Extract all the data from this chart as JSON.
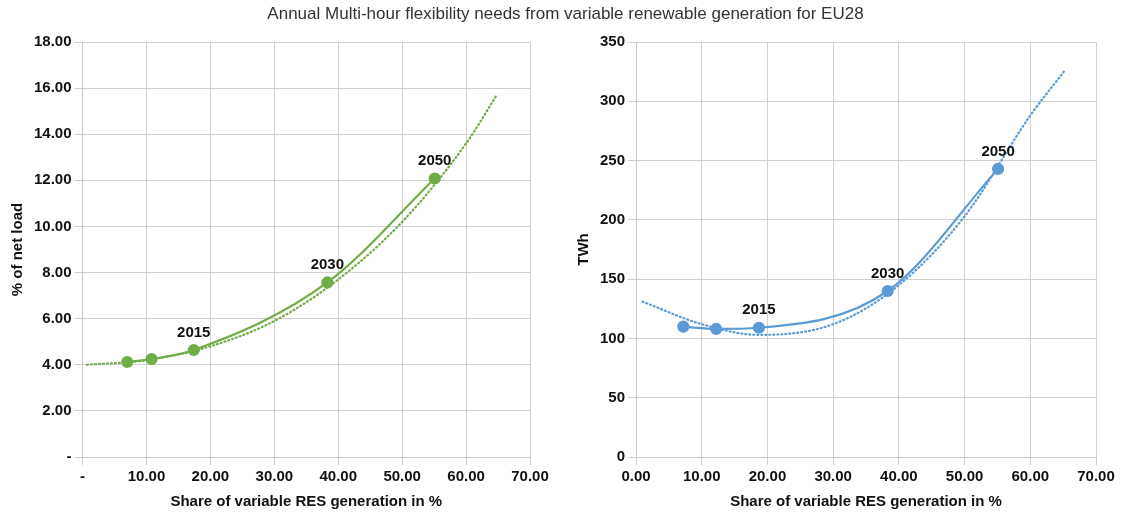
{
  "chart_data": [
    {
      "type": "line",
      "title": "Annual Multi-hour flexibility needs from variable renewable generation for EU28",
      "xlabel": "Share of variable RES generation in %",
      "ylabel": "% of net load",
      "xlim": [
        0,
        70
      ],
      "ylim": [
        0,
        18
      ],
      "xticks": [
        {
          "value": 0,
          "label": "-"
        },
        {
          "value": 10,
          "label": "10.00"
        },
        {
          "value": 20,
          "label": "20.00"
        },
        {
          "value": 30,
          "label": "30.00"
        },
        {
          "value": 40,
          "label": "40.00"
        },
        {
          "value": 50,
          "label": "50.00"
        },
        {
          "value": 60,
          "label": "60.00"
        },
        {
          "value": 70,
          "label": "70.00"
        }
      ],
      "yticks": [
        {
          "value": 0,
          "label": "-"
        },
        {
          "value": 2,
          "label": "2.00"
        },
        {
          "value": 4,
          "label": "4.00"
        },
        {
          "value": 6,
          "label": "6.00"
        },
        {
          "value": 8,
          "label": "8.00"
        },
        {
          "value": 10,
          "label": "10.00"
        },
        {
          "value": 12,
          "label": "12.00"
        },
        {
          "value": 14,
          "label": "14.00"
        },
        {
          "value": 16,
          "label": "16.00"
        },
        {
          "value": 18,
          "label": "18.00"
        }
      ],
      "grid": true,
      "legend": false,
      "series": [
        {
          "color": "#70ad47",
          "marker": "circle",
          "line_style": "solid",
          "x": [
            7.0,
            10.8,
            17.4,
            38.3,
            55.1
          ],
          "values": [
            4.12,
            4.25,
            4.64,
            7.57,
            12.08
          ]
        },
        {
          "color": "#70ad47",
          "marker": "none",
          "line_style": "dotted",
          "x": [
            0.7,
            10,
            20,
            30,
            40,
            50,
            60,
            64.8
          ],
          "values": [
            4.0,
            4.2,
            4.8,
            5.9,
            7.7,
            10.2,
            13.6,
            15.7
          ]
        }
      ],
      "annotations": [
        {
          "text": "2015",
          "x": 17.4,
          "y": 4.64
        },
        {
          "text": "2030",
          "x": 38.3,
          "y": 7.57
        },
        {
          "text": "2050",
          "x": 55.1,
          "y": 12.08
        }
      ]
    },
    {
      "type": "line",
      "xlabel": "Share of variable RES generation in %",
      "ylabel": "TWh",
      "xlim": [
        0,
        70
      ],
      "ylim": [
        0,
        350
      ],
      "xticks": [
        {
          "value": 0,
          "label": "0.00"
        },
        {
          "value": 10,
          "label": "10.00"
        },
        {
          "value": 20,
          "label": "20.00"
        },
        {
          "value": 30,
          "label": "30.00"
        },
        {
          "value": 40,
          "label": "40.00"
        },
        {
          "value": 50,
          "label": "50.00"
        },
        {
          "value": 60,
          "label": "60.00"
        },
        {
          "value": 70,
          "label": "70.00"
        }
      ],
      "yticks": [
        0,
        50,
        100,
        150,
        200,
        250,
        300,
        350
      ],
      "grid": true,
      "legend": false,
      "series": [
        {
          "color": "#5b9bd5",
          "marker": "circle",
          "line_style": "solid",
          "x": [
            7.2,
            12.2,
            18.7,
            38.3,
            55.1
          ],
          "values": [
            110,
            108,
            109,
            140,
            243
          ]
        },
        {
          "color": "#5b9bd5",
          "marker": "none",
          "line_style": "dotted",
          "x": [
            1.0,
            10,
            18.7,
            30,
            40,
            50,
            60,
            65.1
          ],
          "values": [
            131,
            112,
            103,
            112,
            145,
            203,
            288,
            325
          ]
        }
      ],
      "annotations": [
        {
          "text": "2015",
          "x": 18.7,
          "y": 109
        },
        {
          "text": "2030",
          "x": 38.3,
          "y": 140
        },
        {
          "text": "2050",
          "x": 55.1,
          "y": 243
        }
      ]
    }
  ]
}
